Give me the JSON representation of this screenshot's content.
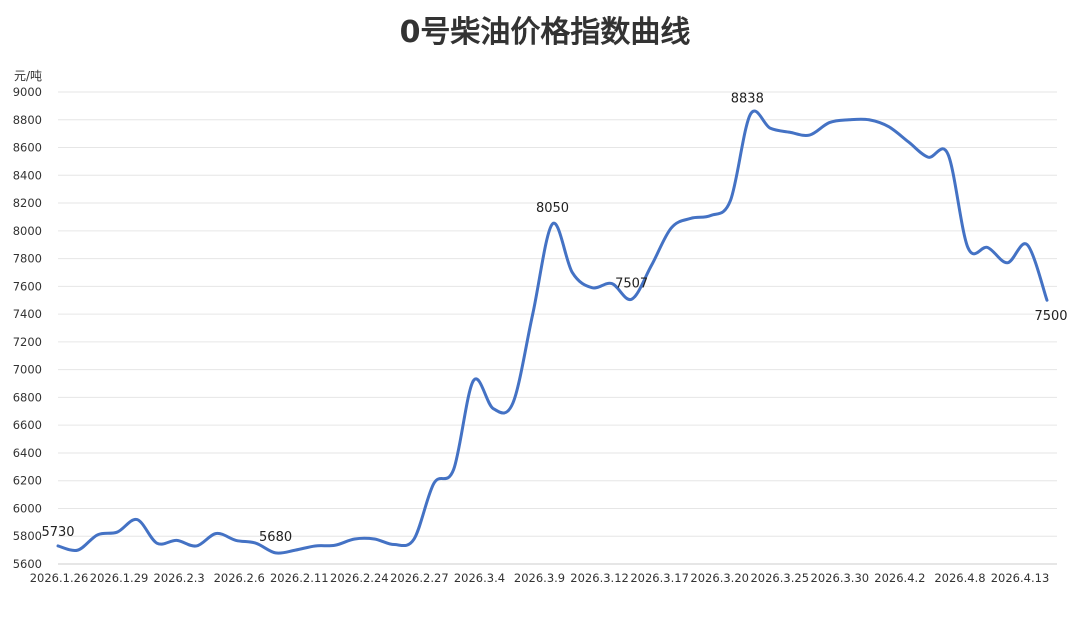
{
  "chart_data": {
    "type": "line",
    "title": "0号柴油价格指数曲线",
    "ylabel": "元/吨",
    "xlabel": "",
    "ylim": [
      5600,
      9000
    ],
    "y_ticks": [
      5600,
      5800,
      6000,
      6200,
      6400,
      6600,
      6800,
      7000,
      7200,
      7400,
      7600,
      7800,
      8000,
      8200,
      8400,
      8600,
      8800,
      9000
    ],
    "x_tick_labels": [
      "2026.1.26",
      "2026.1.29",
      "2026.2.3",
      "2026.2.6",
      "2026.2.11",
      "2026.2.24",
      "2026.2.27",
      "2026.3.4",
      "2026.3.9",
      "2026.3.12",
      "2026.3.17",
      "2026.3.20",
      "2026.3.25",
      "2026.3.30",
      "2026.4.2",
      "2026.4.8",
      "2026.4.13"
    ],
    "grid": true,
    "legend": "none",
    "color": "#4472c4",
    "series": [
      {
        "values": [
          5730,
          5700,
          5810,
          5830,
          5920,
          5750,
          5770,
          5730,
          5820,
          5770,
          5750,
          5680,
          5700,
          5730,
          5735,
          5780,
          5780,
          5740,
          5780,
          6180,
          6280,
          6920,
          6720,
          6760,
          7400,
          8050,
          7700,
          7590,
          7620,
          7507,
          7750,
          8020,
          8090,
          8110,
          8220,
          8838,
          8740,
          8710,
          8690,
          8780,
          8800,
          8800,
          8750,
          8640,
          8530,
          8550,
          7880,
          7880,
          7770,
          7900,
          7500
        ]
      }
    ],
    "annotations": [
      {
        "index": 0,
        "text": "5730"
      },
      {
        "index": 11,
        "text": "5680"
      },
      {
        "index": 25,
        "text": "8050"
      },
      {
        "index": 29,
        "text": "7507"
      },
      {
        "index": 35,
        "text": "8838"
      },
      {
        "index": 50,
        "text": "7500"
      }
    ]
  }
}
